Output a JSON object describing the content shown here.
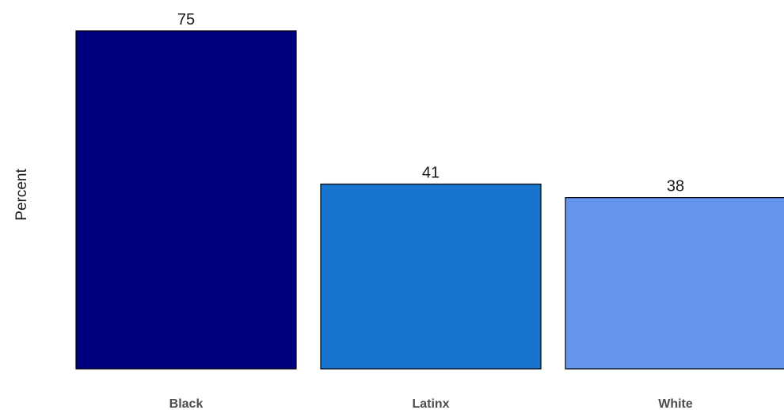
{
  "chart_data": {
    "type": "bar",
    "categories": [
      "Black",
      "Latinx",
      "White"
    ],
    "values": [
      75,
      41,
      38
    ],
    "data_labels": [
      "75",
      "41",
      "38"
    ],
    "colors": [
      "#00007f",
      "#1874cd",
      "#6495ed"
    ],
    "title": "",
    "xlabel": "",
    "ylabel": "Percent",
    "ylim": [
      0,
      75
    ],
    "grid": false,
    "legend": "none"
  }
}
